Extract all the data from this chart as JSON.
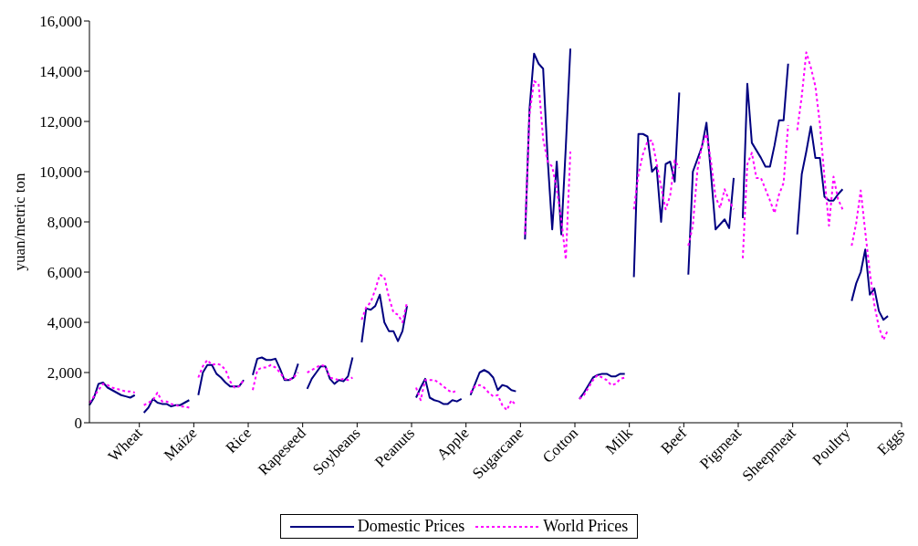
{
  "chart_data": {
    "type": "line",
    "ylabel": "yuan/metric ton",
    "ylim": [
      0,
      16000
    ],
    "yticks": [
      {
        "value": 0,
        "label": "0"
      },
      {
        "value": 2000,
        "label": "2,000"
      },
      {
        "value": 4000,
        "label": "4,000"
      },
      {
        "value": 6000,
        "label": "6,000"
      },
      {
        "value": 8000,
        "label": "8,000"
      },
      {
        "value": 10000,
        "label": "10,000"
      },
      {
        "value": 12000,
        "label": "12,000"
      },
      {
        "value": 14000,
        "label": "14,000"
      },
      {
        "value": 16000,
        "label": "16,000"
      }
    ],
    "grid": false,
    "legend": "bottom",
    "marker": "none",
    "categories": [
      null,
      null,
      null,
      null,
      null,
      null,
      null,
      null,
      null,
      null,
      null,
      "Wheat",
      null,
      null,
      null,
      null,
      null,
      null,
      null,
      null,
      null,
      null,
      null,
      "Maize",
      null,
      null,
      null,
      null,
      null,
      null,
      null,
      null,
      null,
      null,
      null,
      "Rice",
      null,
      null,
      null,
      null,
      null,
      null,
      null,
      null,
      null,
      null,
      null,
      "Rapeseed",
      null,
      null,
      null,
      null,
      null,
      null,
      null,
      null,
      null,
      null,
      null,
      "Soybeans",
      null,
      null,
      null,
      null,
      null,
      null,
      null,
      null,
      null,
      null,
      null,
      "Peanuts",
      null,
      null,
      null,
      null,
      null,
      null,
      null,
      null,
      null,
      null,
      null,
      "Apple",
      null,
      null,
      null,
      null,
      null,
      null,
      null,
      null,
      null,
      null,
      null,
      "Sugarcane",
      null,
      null,
      null,
      null,
      null,
      null,
      null,
      null,
      null,
      null,
      null,
      "Cotton",
      null,
      null,
      null,
      null,
      null,
      null,
      null,
      null,
      null,
      null,
      null,
      "Milk",
      null,
      null,
      null,
      null,
      null,
      null,
      null,
      null,
      null,
      null,
      null,
      "Beef",
      null,
      null,
      null,
      null,
      null,
      null,
      null,
      null,
      null,
      null,
      null,
      "Pigmeat",
      null,
      null,
      null,
      null,
      null,
      null,
      null,
      null,
      null,
      null,
      null,
      "Sheepmeat",
      null,
      null,
      null,
      null,
      null,
      null,
      null,
      null,
      null,
      null,
      null,
      "Poultry",
      null,
      null,
      null,
      null,
      null,
      null,
      null,
      null,
      null,
      null,
      null,
      "Eggs"
    ],
    "series": [
      {
        "name": "Domestic Prices",
        "color": "#000080",
        "line_style": "solid",
        "values": [
          700,
          1000,
          1550,
          1600,
          1400,
          1300,
          1200,
          1100,
          1050,
          1000,
          1100,
          null,
          400,
          600,
          950,
          800,
          750,
          750,
          650,
          700,
          700,
          800,
          900,
          null,
          1100,
          2000,
          2300,
          2300,
          1950,
          1800,
          1600,
          1450,
          1450,
          1450,
          1700,
          null,
          1900,
          2550,
          2600,
          2500,
          2500,
          2550,
          2150,
          1700,
          1700,
          1800,
          2350,
          null,
          1350,
          1750,
          2000,
          2250,
          2250,
          1750,
          1550,
          1700,
          1650,
          1850,
          2600,
          null,
          3200,
          4550,
          4500,
          4650,
          5100,
          4000,
          3650,
          3650,
          3250,
          3650,
          4650,
          null,
          1000,
          1400,
          1750,
          1000,
          900,
          850,
          750,
          750,
          900,
          850,
          950,
          null,
          1100,
          1550,
          2000,
          2100,
          2000,
          1800,
          1300,
          1500,
          1450,
          1300,
          1250,
          null,
          7300,
          12500,
          14700,
          14300,
          14100,
          10500,
          7700,
          10400,
          7500,
          11000,
          14900,
          null,
          950,
          1200,
          1500,
          1800,
          1900,
          1950,
          1950,
          1850,
          1850,
          1950,
          1950,
          null,
          5800,
          11500,
          11500,
          11400,
          10000,
          10200,
          8000,
          10300,
          10400,
          9600,
          13150,
          null,
          5900,
          10000,
          10500,
          11000,
          11950,
          9900,
          7700,
          7900,
          8100,
          7750,
          9750,
          null,
          8150,
          13500,
          11150,
          10850,
          10550,
          10200,
          10200,
          11050,
          12050,
          12050,
          14300,
          null,
          7500,
          9900,
          10800,
          11800,
          10550,
          10550,
          9000,
          8850,
          8850,
          9100,
          9300,
          null,
          4850,
          5550,
          6000,
          6900,
          5100,
          5350,
          4450,
          4100,
          4250,
          null,
          null,
          null
        ]
      },
      {
        "name": "World Prices",
        "color": "#ff00ff",
        "line_style": "dotted",
        "values": [
          800,
          1050,
          1300,
          1550,
          1500,
          1400,
          1350,
          1300,
          1250,
          1250,
          1200,
          null,
          700,
          800,
          900,
          1200,
          850,
          850,
          750,
          700,
          650,
          650,
          600,
          null,
          1800,
          2250,
          2500,
          2300,
          2350,
          2300,
          2100,
          1650,
          1400,
          1450,
          1700,
          null,
          1300,
          2100,
          2200,
          2200,
          2300,
          2200,
          2000,
          1750,
          1700,
          1800,
          2000,
          null,
          2000,
          2100,
          2200,
          2300,
          2250,
          1800,
          1750,
          1700,
          1750,
          1700,
          1800,
          null,
          4100,
          4600,
          4800,
          5300,
          5900,
          5800,
          5000,
          4400,
          4300,
          4000,
          4800,
          null,
          1400,
          900,
          1700,
          1700,
          1700,
          1600,
          1450,
          1300,
          1200,
          1300,
          null,
          null,
          1200,
          1450,
          1500,
          1400,
          1200,
          1050,
          1100,
          700,
          500,
          900,
          700,
          null,
          7500,
          12300,
          13600,
          13500,
          11300,
          10400,
          10200,
          9300,
          8100,
          6500,
          10800,
          null,
          950,
          1100,
          1400,
          1700,
          1900,
          1800,
          1700,
          1500,
          1550,
          1750,
          1800,
          null,
          8500,
          9900,
          10700,
          11200,
          11250,
          10350,
          9400,
          8500,
          9050,
          10450,
          10150,
          null,
          7050,
          7850,
          10050,
          11050,
          11500,
          10400,
          9000,
          8550,
          9300,
          8850,
          8500,
          null,
          6550,
          10300,
          10750,
          9750,
          9750,
          9300,
          8850,
          8350,
          9100,
          9550,
          11850,
          null,
          11650,
          13000,
          14750,
          14150,
          13400,
          11900,
          9800,
          7850,
          9800,
          8900,
          8500,
          null,
          7050,
          7950,
          9250,
          7600,
          6000,
          4700,
          3800,
          3300,
          3700,
          null,
          null,
          null
        ]
      }
    ]
  }
}
